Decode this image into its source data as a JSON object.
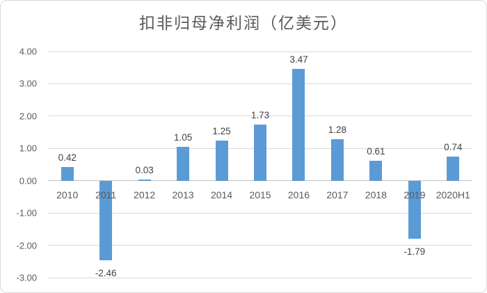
{
  "chart_data": {
    "type": "bar",
    "title": "扣非归母净利润（亿美元）",
    "categories": [
      "2010",
      "2011",
      "2012",
      "2013",
      "2014",
      "2015",
      "2016",
      "2017",
      "2018",
      "2019",
      "2020H1"
    ],
    "values": [
      0.42,
      -2.46,
      0.03,
      1.05,
      1.25,
      1.73,
      3.47,
      1.28,
      0.61,
      -1.79,
      0.74
    ],
    "value_labels": [
      "0.42",
      "-2.46",
      "0.03",
      "1.05",
      "1.25",
      "1.73",
      "3.47",
      "1.28",
      "0.61",
      "-1.79",
      "0.74"
    ],
    "yticks": [
      "4.00",
      "3.00",
      "2.00",
      "1.00",
      "0.00",
      "-1.00",
      "-2.00",
      "-3.00"
    ],
    "ytick_values": [
      4,
      3,
      2,
      1,
      0,
      -1,
      -2,
      -3
    ],
    "ylim": [
      -3,
      4
    ],
    "grid": true,
    "legend": "none",
    "xlabel": "",
    "ylabel": "",
    "colors": {
      "bar": "#5B9BD5",
      "grid": "#D9D9D9",
      "axis_line": "#BFBFBF",
      "tick_label": "#595959",
      "data_label": "#404040",
      "title": "#595959",
      "frame_border": "#D9D9D9",
      "background": "#FFFFFF"
    }
  }
}
